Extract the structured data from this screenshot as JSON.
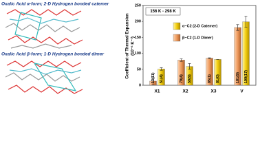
{
  "panel_labels": [
    "Oxalic Acid α-form; 2-D Hydrogen bonded catemer",
    "Oxalic Acid β-form; 1-D Hydrogen bonded dimer"
  ],
  "chart_data": {
    "type": "bar",
    "annotation": "156 K - 298 K",
    "ylabel": "Coefficient of Thermal Expansion",
    "ylabel_unit": "(10⁻⁶ K⁻¹)",
    "categories": [
      "X1",
      "X2",
      "X3",
      "V"
    ],
    "series": [
      {
        "name": "α−C2 (2-D Catemer)",
        "color": "#f2cc0c",
        "values": [
          51,
          59,
          81,
          199
        ],
        "errors": [
          4,
          9,
          0,
          17
        ],
        "value_labels": [
          "51(4)",
          "59(9)",
          "81(0)",
          "199(17)"
        ]
      },
      {
        "name": "β−C2 (1-D Dimer)",
        "color": "#ee9a5c",
        "values": [
          13,
          79,
          85,
          181
        ],
        "errors": [
          11,
          4,
          1,
          9
        ],
        "value_labels": [
          "13(11)",
          "79(4)",
          "85(1)",
          "181(9)"
        ]
      }
    ],
    "ylim": [
      0,
      250
    ],
    "yticks": [
      0,
      50,
      100,
      150,
      200,
      250
    ],
    "legend": "upper-left"
  }
}
